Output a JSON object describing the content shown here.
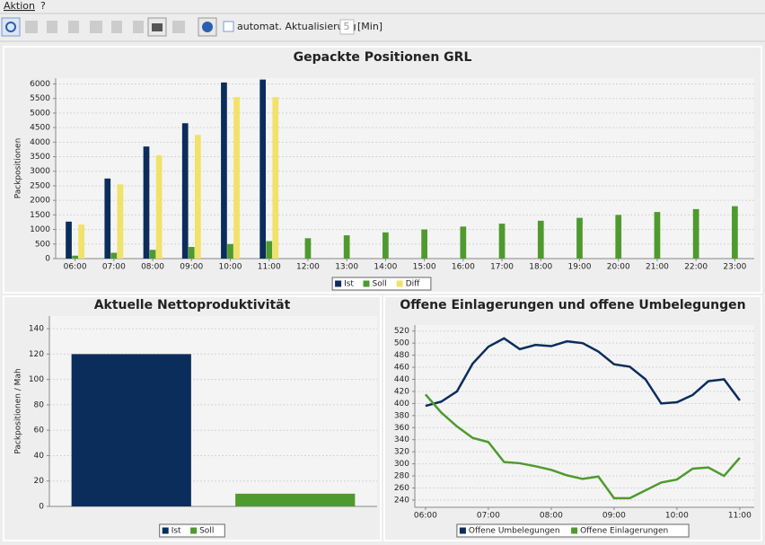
{
  "menu": [
    "Aktion",
    "?"
  ],
  "toolbar": {
    "checkbox_label": "automat. Aktualisierung",
    "interval": "5",
    "unit": "[Min]"
  },
  "chart_data": [
    {
      "type": "bar",
      "title": "Gepackte Positionen GRL",
      "y_label": "Packpositionen",
      "categories": [
        "06:00",
        "07:00",
        "08:00",
        "09:00",
        "10:00",
        "11:00",
        "12:00",
        "13:00",
        "14:00",
        "15:00",
        "16:00",
        "17:00",
        "18:00",
        "19:00",
        "20:00",
        "21:00",
        "22:00",
        "23:00"
      ],
      "series": [
        {
          "name": "Ist",
          "color": "#0b2d5c",
          "values": [
            1270,
            2750,
            3850,
            4650,
            6050,
            6150,
            null,
            null,
            null,
            null,
            null,
            null,
            null,
            null,
            null,
            null,
            null,
            null
          ]
        },
        {
          "name": "Soll",
          "color": "#4f9a2e",
          "values": [
            100,
            200,
            300,
            400,
            500,
            600,
            700,
            800,
            900,
            1000,
            1100,
            1200,
            1300,
            1400,
            1500,
            1600,
            1700,
            1800
          ]
        },
        {
          "name": "Diff",
          "color": "#f0e26a",
          "values": [
            1170,
            2550,
            3550,
            4250,
            5550,
            5550,
            null,
            null,
            null,
            null,
            null,
            null,
            null,
            null,
            null,
            null,
            null,
            null
          ]
        }
      ],
      "ylim": [
        0,
        6200
      ],
      "yticks": [
        0,
        500,
        1000,
        1500,
        2000,
        2500,
        3000,
        3500,
        4000,
        4500,
        5000,
        5500,
        6000
      ],
      "grid": true,
      "legend": "bottom"
    },
    {
      "type": "bar",
      "title": "Aktuelle Nettoproduktivität",
      "y_label": "Packpositionen / Mah",
      "categories": [
        null
      ],
      "series": [
        {
          "name": "Ist",
          "color": "#0b2d5c",
          "values": [
            120
          ]
        },
        {
          "name": "Soll",
          "color": "#4f9a2e",
          "values": [
            10
          ]
        }
      ],
      "ylim": [
        0,
        150
      ],
      "yticks": [
        0,
        20,
        40,
        60,
        80,
        100,
        120,
        140
      ],
      "grid": true,
      "legend": "bottom"
    },
    {
      "type": "line",
      "title": "Offene Einlagerungen und offene Umbelegungen",
      "x": [
        6,
        6.25,
        6.5,
        6.75,
        7,
        7.25,
        7.5,
        7.75,
        8,
        8.25,
        8.5,
        8.75,
        9,
        9.25,
        9.5,
        9.75,
        10,
        10.25,
        10.5,
        10.75,
        11
      ],
      "series": [
        {
          "name": "Offene Umbelegungen",
          "color": "#0b2d5c",
          "values": [
            396,
            403,
            420,
            466,
            494,
            508,
            490,
            497,
            495,
            503,
            500,
            486,
            465,
            461,
            440,
            400,
            402,
            414,
            437,
            440,
            405
          ]
        },
        {
          "name": "Offene Einlagerungen",
          "color": "#4f9a2e",
          "values": [
            415,
            385,
            362,
            343,
            336,
            303,
            301,
            296,
            290,
            281,
            275,
            279,
            243,
            243,
            256,
            269,
            274,
            292,
            294,
            280,
            310
          ]
        }
      ],
      "xlim": [
        5.83,
        11.23
      ],
      "xticks": [
        {
          "value": 6,
          "label": "06:00"
        },
        {
          "value": 7,
          "label": "07:00"
        },
        {
          "value": 8,
          "label": "08:00"
        },
        {
          "value": 9,
          "label": "09:00"
        },
        {
          "value": 10,
          "label": "10:00"
        },
        {
          "value": 11,
          "label": "11:00"
        }
      ],
      "ylim": [
        228,
        530
      ],
      "yticks": [
        240,
        260,
        280,
        300,
        320,
        340,
        360,
        380,
        400,
        420,
        440,
        460,
        480,
        500,
        520
      ],
      "grid": true,
      "legend": "bottom"
    }
  ]
}
